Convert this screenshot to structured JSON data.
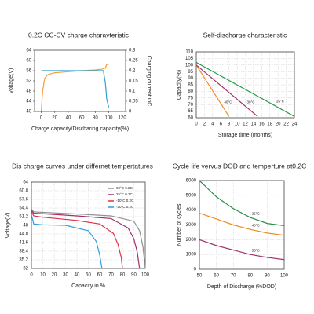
{
  "chart_data": [
    {
      "type": "line",
      "title": "0.2C CC-CV charge charavteristic",
      "xlabel": "Charge capacity/Discharing capacity(%)",
      "ylabel": "Voltage(V)",
      "y2label": "Charging current inC",
      "xlim": [
        -10,
        125
      ],
      "xticks": [
        0,
        20,
        40,
        60,
        80,
        100,
        120
      ],
      "ylim": [
        40,
        64
      ],
      "yticks": [
        40,
        44,
        48,
        52,
        56,
        60,
        64
      ],
      "y2lim": [
        0,
        0.3
      ],
      "y2ticks": [
        0,
        0.05,
        0.1,
        0.15,
        0.2,
        0.25,
        0.3
      ],
      "grid": false,
      "series": [
        {
          "color": "#f0a040",
          "x": [
            0,
            2,
            5,
            10,
            20,
            40,
            60,
            80,
            90,
            95,
            97,
            100
          ],
          "values": [
            40,
            48,
            53,
            54.5,
            55.2,
            55.6,
            56,
            56.3,
            56.6,
            57,
            58.5,
            58.5
          ]
        },
        {
          "color": "#30a0d0",
          "axis": "y2",
          "x": [
            0,
            20,
            40,
            60,
            80,
            92,
            95,
            97,
            100
          ],
          "values": [
            0.2,
            0.2,
            0.2,
            0.2,
            0.2,
            0.2,
            0.14,
            0.06,
            0.02
          ]
        }
      ]
    },
    {
      "type": "line",
      "title": "Self-discharge characteristic",
      "xlabel": "Storage time (months)",
      "ylabel": "Capacity(%)",
      "xlim": [
        0,
        24
      ],
      "xticks": [
        0,
        2,
        4,
        6,
        8,
        10,
        12,
        14,
        16,
        18,
        20,
        22,
        24
      ],
      "ylim": [
        60,
        110
      ],
      "yticks": [
        60,
        65,
        70,
        75,
        80,
        85,
        90,
        95,
        100,
        105,
        110
      ],
      "grid": true,
      "series": [
        {
          "name": "40°C",
          "color": "#f0902a",
          "x": [
            0,
            8
          ],
          "values": [
            100,
            61
          ]
        },
        {
          "name": "30°C",
          "color": "#a0306a",
          "x": [
            0,
            15
          ],
          "values": [
            100,
            61
          ]
        },
        {
          "name": "25°C",
          "color": "#2a9a4a",
          "x": [
            0,
            24
          ],
          "values": [
            102,
            61
          ]
        }
      ]
    },
    {
      "type": "line",
      "title": "Dis charge curves under differnet tempertatures",
      "xlabel": "Capacity in %",
      "ylabel": "Voltage(V)",
      "xlim": [
        0,
        100
      ],
      "xticks": [
        0,
        10,
        20,
        30,
        40,
        50,
        60,
        70,
        80,
        90,
        100
      ],
      "ylim": [
        32,
        64
      ],
      "yticks": [
        32,
        35.2,
        38.4,
        41.6,
        44.8,
        48,
        51.2,
        54.4,
        57.6,
        60.8,
        64
      ],
      "grid": true,
      "legend": "upper right",
      "series": [
        {
          "name": "60°C 0.2C",
          "color": "#909090",
          "x": [
            0,
            2,
            10,
            40,
            70,
            90,
            95,
            98,
            100
          ],
          "values": [
            54,
            53,
            52.8,
            52.2,
            51.5,
            49.5,
            46,
            40,
            32
          ]
        },
        {
          "name": "25°C 0.2C",
          "color": "#a0306a",
          "x": [
            0,
            2,
            10,
            40,
            70,
            85,
            90,
            93,
            95
          ],
          "values": [
            53.5,
            52.5,
            52.3,
            51.5,
            50.5,
            47,
            43,
            38,
            32
          ]
        },
        {
          "name": "-10°C 0.2C",
          "color": "#e03040",
          "x": [
            0,
            2,
            10,
            40,
            60,
            72,
            76,
            79,
            80
          ],
          "values": [
            53,
            51.5,
            51,
            49.8,
            48.5,
            45,
            41,
            36,
            32
          ]
        },
        {
          "name": "-20°C 0.2C",
          "color": "#30a0e0",
          "x": [
            0,
            2,
            10,
            30,
            50,
            57,
            60,
            62
          ],
          "values": [
            52,
            48.5,
            48.2,
            48,
            46,
            42,
            37,
            32
          ]
        }
      ]
    },
    {
      "type": "line",
      "title": "Cycle life vervus DOD and temperture at0.2C",
      "xlabel": "Depth of Discharge (%DOD)",
      "ylabel": "Number of cycles",
      "xlim": [
        50,
        100
      ],
      "xticks": [
        50,
        60,
        70,
        80,
        90,
        100
      ],
      "ylim": [
        0,
        6000
      ],
      "yticks": [
        0,
        1000,
        2000,
        3000,
        4000,
        5000,
        6000
      ],
      "grid": true,
      "series": [
        {
          "name": "25°C",
          "color": "#2a8a4a",
          "x": [
            50,
            60,
            70,
            80,
            90,
            100
          ],
          "values": [
            6000,
            4900,
            4100,
            3500,
            3100,
            2950
          ]
        },
        {
          "name": "40°C",
          "color": "#f08a20",
          "x": [
            50,
            60,
            70,
            80,
            90,
            100
          ],
          "values": [
            3800,
            3400,
            3000,
            2700,
            2450,
            2300
          ]
        },
        {
          "name": "55°C",
          "color": "#a0306a",
          "x": [
            50,
            60,
            70,
            80,
            90,
            100
          ],
          "values": [
            2000,
            1600,
            1300,
            1000,
            800,
            650
          ]
        }
      ]
    }
  ]
}
